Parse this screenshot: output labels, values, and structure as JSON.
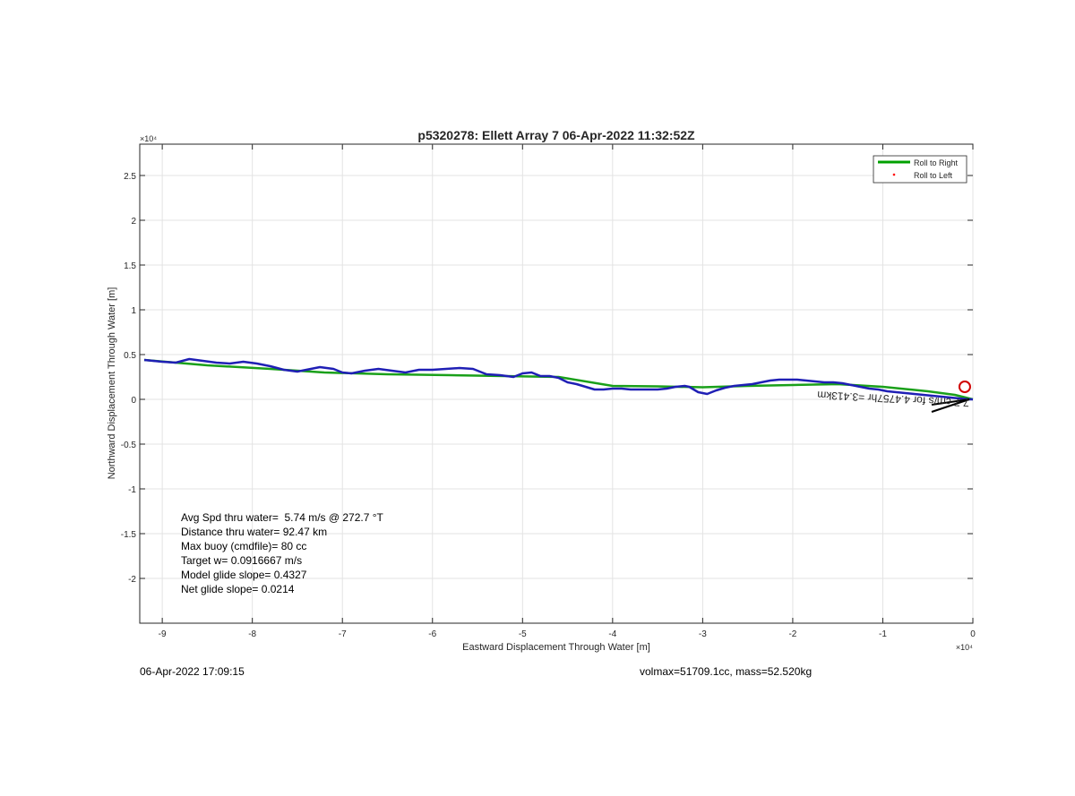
{
  "figure": {
    "footer_left": "06-Apr-2022 17:09:15",
    "footer_right": "volmax=51709.1cc, mass=52.520kg",
    "stats": [
      "Avg Spd thru water=  5.74 m/s @ 272.7 °T",
      "Distance thru water= 92.47 km",
      "Max buoy (cmdfile)= 80 cc",
      "Target w= 0.0916667 m/s",
      "Model glide slope= 0.4327",
      "Net glide slope= 0.0214"
    ],
    "arrow_annotation": "7.7 cm/s for 4.4757hr =3.413km"
  },
  "chart_data": {
    "type": "line",
    "title": "p5320278: Ellett Array 7 06-Apr-2022 11:32:52Z",
    "xlabel": "Eastward Displacement Through Water [m]",
    "ylabel": "Northward Displacement Through Water [m]",
    "x_exponent_label": "×10⁴",
    "y_exponent_label": "×10⁴",
    "xlim": [
      -92500,
      0
    ],
    "ylim": [
      -25000,
      28500
    ],
    "xticks": [
      -90000,
      -80000,
      -70000,
      -60000,
      -50000,
      -40000,
      -30000,
      -20000,
      -10000,
      0
    ],
    "xtick_labels": [
      "-9",
      "-8",
      "-7",
      "-6",
      "-5",
      "-4",
      "-3",
      "-2",
      "-1",
      "0"
    ],
    "yticks": [
      -20000,
      -15000,
      -10000,
      -5000,
      0,
      5000,
      10000,
      15000,
      20000,
      25000
    ],
    "ytick_labels": [
      "-2",
      "-1.5",
      "-1",
      "-0.5",
      "0",
      "0.5",
      "1",
      "1.5",
      "2",
      "2.5"
    ],
    "grid": true,
    "legend_position": "top-right",
    "legend": [
      {
        "label": "Roll to Right",
        "color": "#00a000",
        "style": "line"
      },
      {
        "label": "Roll to Left",
        "color": "#ff0000",
        "style": "dot"
      }
    ],
    "series": [
      {
        "name": "Roll to Right",
        "color": "#1aa01a",
        "x": [
          -92000,
          -85000,
          -78000,
          -72000,
          -65000,
          -58000,
          -52000,
          -46000,
          -40000,
          -35000,
          -30000,
          -25000,
          -20000,
          -15000,
          -10000,
          -5000,
          -2000,
          0
        ],
        "y": [
          4400,
          3800,
          3400,
          3000,
          2800,
          2700,
          2600,
          2500,
          1500,
          1450,
          1350,
          1500,
          1600,
          1700,
          1400,
          900,
          500,
          0
        ]
      },
      {
        "name": "",
        "color": "#1f1fb5",
        "x": [
          -92000,
          -90000,
          -88500,
          -87000,
          -85500,
          -84000,
          -82500,
          -81000,
          -79500,
          -78000,
          -76500,
          -75000,
          -73500,
          -72500,
          -71000,
          -70000,
          -69000,
          -67500,
          -66000,
          -64500,
          -63000,
          -61500,
          -60000,
          -58500,
          -57000,
          -55500,
          -54000,
          -52500,
          -51000,
          -50000,
          -49000,
          -48000,
          -47000,
          -46000,
          -45000,
          -44000,
          -43000,
          -42000,
          -41000,
          -40000,
          -39000,
          -38000,
          -37000,
          -36000,
          -35000,
          -34000,
          -33000,
          -32000,
          -31500,
          -30500,
          -29500,
          -29000,
          -28500,
          -27500,
          -26500,
          -25500,
          -24500,
          -23500,
          -22500,
          -21500,
          -20500,
          -19500,
          -18500,
          -17500,
          -16500,
          -15500,
          -14500,
          -13500,
          -12500,
          -11500,
          -10500,
          -9500,
          -8500,
          -7500,
          -6500,
          -5500,
          -4500,
          -3500,
          -2500,
          -1500,
          -500,
          0
        ],
        "y": [
          4400,
          4200,
          4100,
          4500,
          4300,
          4100,
          4000,
          4200,
          4000,
          3700,
          3300,
          3100,
          3400,
          3600,
          3400,
          3000,
          2900,
          3200,
          3400,
          3200,
          3000,
          3300,
          3300,
          3400,
          3500,
          3400,
          2800,
          2700,
          2500,
          2900,
          3000,
          2600,
          2600,
          2400,
          1900,
          1700,
          1400,
          1100,
          1100,
          1200,
          1200,
          1100,
          1100,
          1100,
          1100,
          1200,
          1400,
          1500,
          1400,
          800,
          600,
          800,
          1000,
          1300,
          1500,
          1600,
          1700,
          1900,
          2100,
          2200,
          2200,
          2200,
          2100,
          2000,
          1900,
          1900,
          1800,
          1600,
          1400,
          1200,
          1100,
          900,
          800,
          700,
          600,
          500,
          400,
          300,
          200,
          100,
          0,
          0
        ]
      }
    ],
    "markers": [
      {
        "name": "surface-circle",
        "x": -900,
        "y": 1400,
        "color": "#d00000"
      }
    ]
  }
}
